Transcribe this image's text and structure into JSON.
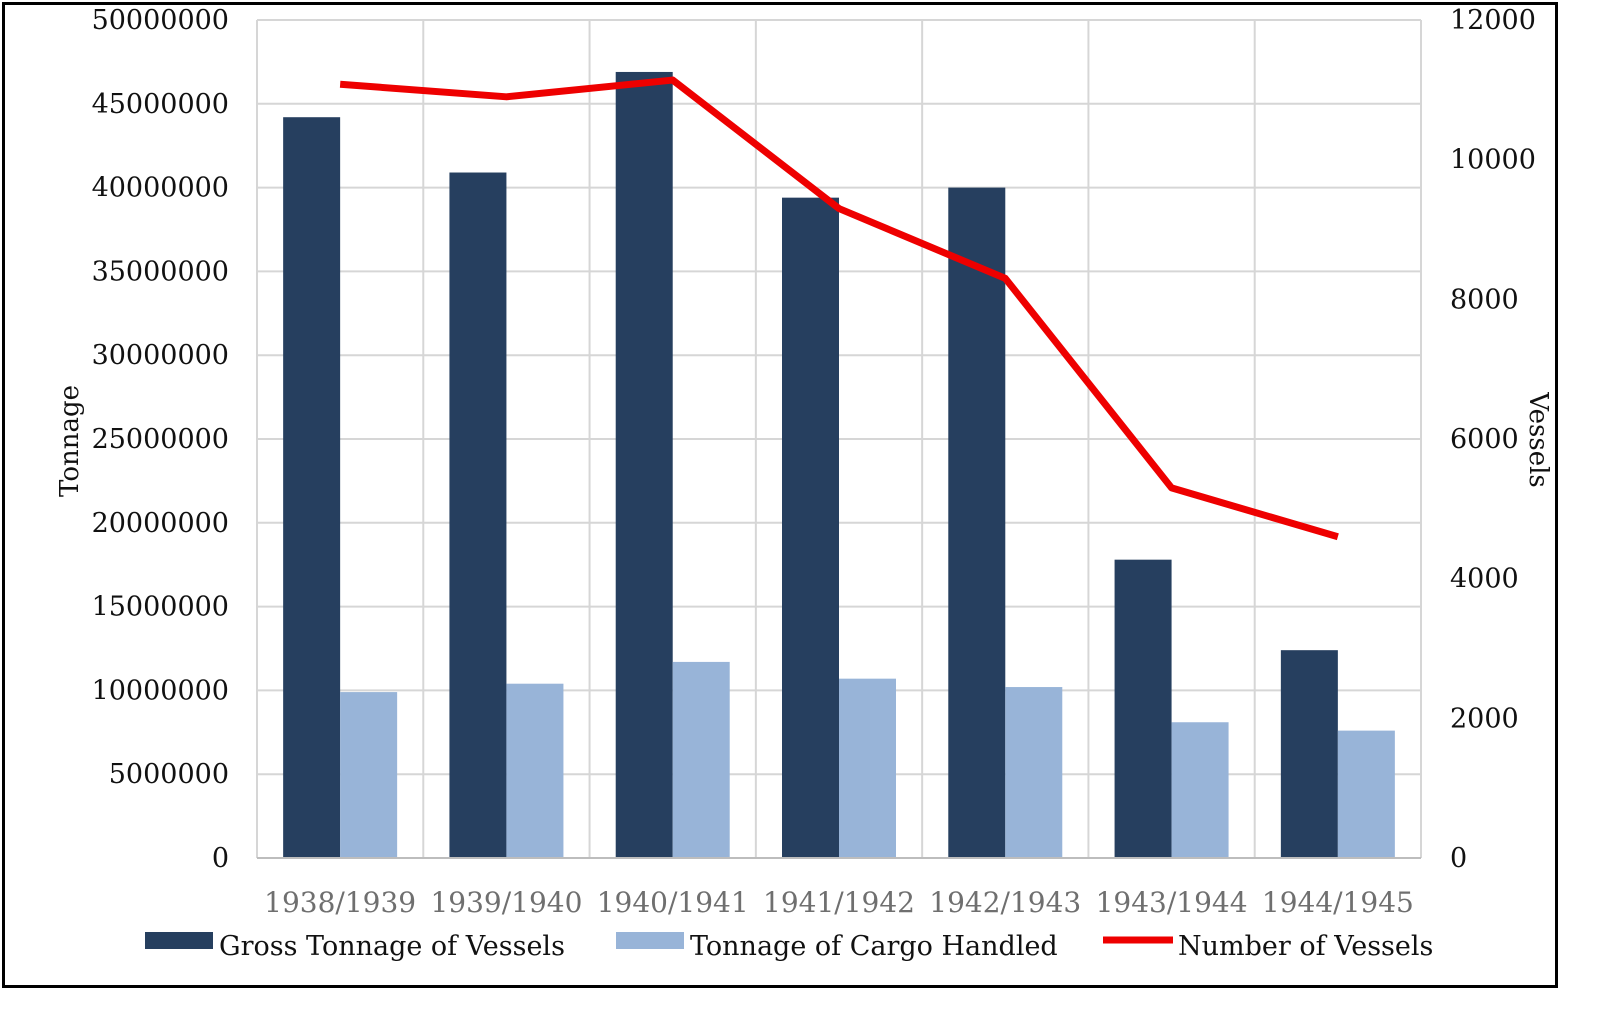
{
  "chart_data": {
    "type": "bar",
    "categories": [
      "1938/1939",
      "1939/1940",
      "1940/1941",
      "1941/1942",
      "1942/1943",
      "1943/1944",
      "1944/1945"
    ],
    "series": [
      {
        "name": "Gross Tonnage of Vessels",
        "kind": "bar",
        "axis": "left",
        "color": "#263f5f",
        "values": [
          44200000,
          40900000,
          46900000,
          39400000,
          40000000,
          17800000,
          12400000
        ]
      },
      {
        "name": "Tonnage of Cargo Handled",
        "kind": "bar",
        "axis": "left",
        "color": "#98b4d8",
        "values": [
          9900000,
          10400000,
          11700000,
          10700000,
          10200000,
          8100000,
          7600000
        ]
      },
      {
        "name": "Number of Vessels",
        "kind": "line",
        "axis": "right",
        "color": "#ee0000",
        "values": [
          11080,
          10900,
          11140,
          9300,
          8300,
          5300,
          4600
        ]
      }
    ],
    "ylabel": "Tonnage",
    "y2label": "Vessels",
    "ylim": [
      0,
      50000000
    ],
    "y2lim": [
      0,
      12000
    ],
    "yticks": [
      "0",
      "5000000",
      "10000000",
      "15000000",
      "20000000",
      "25000000",
      "30000000",
      "35000000",
      "40000000",
      "45000000",
      "50000000"
    ],
    "y2ticks": [
      "0",
      "2000",
      "4000",
      "6000",
      "8000",
      "10000",
      "12000"
    ],
    "grid": true,
    "legend_position": "bottom"
  }
}
